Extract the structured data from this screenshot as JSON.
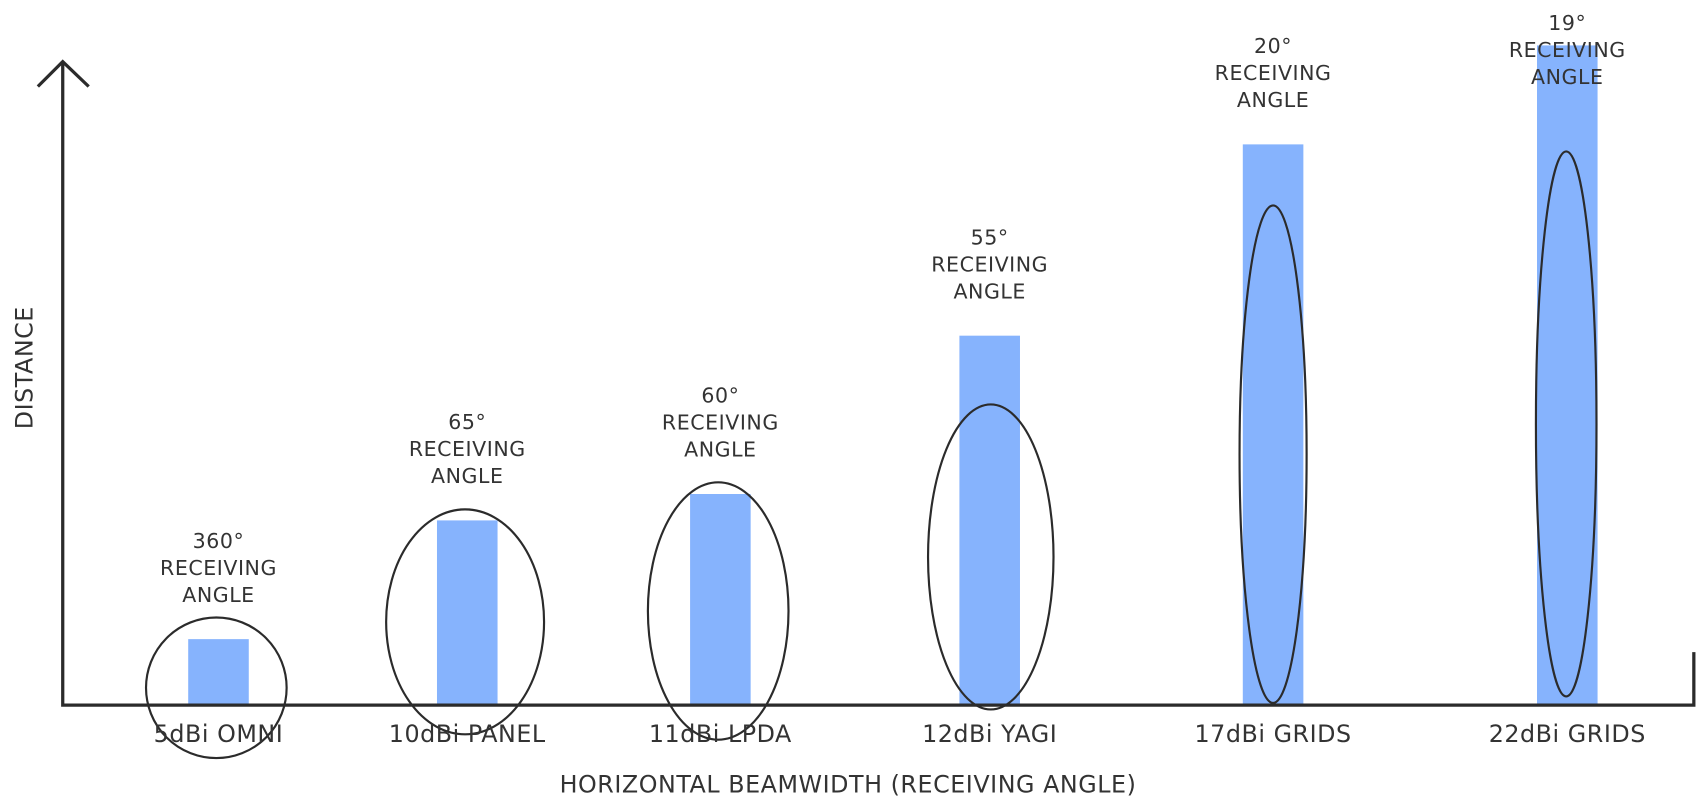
{
  "chart_data": {
    "type": "bar",
    "x_label": "HORIZONTAL BEAMWIDTH (RECEIVING ANGLE)",
    "y_label": "DISTANCE",
    "categories": [
      "5dBi OMNI",
      "10dBi PANEL",
      "11dBi LPDA",
      "12dBi YAGI",
      "17dBi GRIDS",
      "22dBi GRIDS"
    ],
    "values": [
      10,
      28,
      32,
      56,
      85,
      100
    ],
    "color": "#86b3fd",
    "ylim": [
      0,
      100
    ],
    "annotations": [
      {
        "angle": "360°",
        "lines": [
          "RECEIVING",
          "ANGLE"
        ]
      },
      {
        "angle": "65°",
        "lines": [
          "RECEIVING",
          "ANGLE"
        ]
      },
      {
        "angle": "60°",
        "lines": [
          "RECEIVING",
          "ANGLE"
        ]
      },
      {
        "angle": "55°",
        "lines": [
          "RECEIVING",
          "ANGLE"
        ]
      },
      {
        "angle": "20°",
        "lines": [
          "RECEIVING",
          "ANGLE"
        ]
      },
      {
        "angle": "19°",
        "lines": [
          "RECEIVING",
          "ANGLE"
        ]
      }
    ]
  }
}
